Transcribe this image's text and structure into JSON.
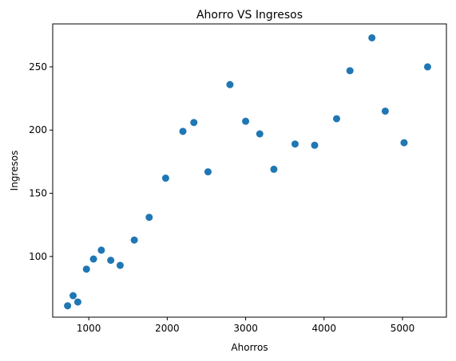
{
  "chart_data": {
    "type": "scatter",
    "title": "Ahorro VS Ingresos",
    "xlabel": "Ahorros",
    "ylabel": "Ingresos",
    "xlim": [
      540,
      5560
    ],
    "ylim": [
      52,
      284
    ],
    "grid": false,
    "legend": "none",
    "marker_color": "#1f77b4",
    "xticks": [
      {
        "value": 1000,
        "label": "1000"
      },
      {
        "value": 2000,
        "label": "2000"
      },
      {
        "value": 3000,
        "label": "3000"
      },
      {
        "value": 4000,
        "label": "4000"
      },
      {
        "value": 5000,
        "label": "5000"
      }
    ],
    "yticks": [
      {
        "value": 100,
        "label": "100"
      },
      {
        "value": 150,
        "label": "150"
      },
      {
        "value": 200,
        "label": "200"
      },
      {
        "value": 250,
        "label": "250"
      }
    ],
    "points": [
      {
        "x": 730,
        "y": 61
      },
      {
        "x": 800,
        "y": 69
      },
      {
        "x": 860,
        "y": 64
      },
      {
        "x": 970,
        "y": 90
      },
      {
        "x": 1060,
        "y": 98
      },
      {
        "x": 1160,
        "y": 105
      },
      {
        "x": 1280,
        "y": 97
      },
      {
        "x": 1400,
        "y": 93
      },
      {
        "x": 1580,
        "y": 113
      },
      {
        "x": 1770,
        "y": 131
      },
      {
        "x": 1980,
        "y": 162
      },
      {
        "x": 2200,
        "y": 199
      },
      {
        "x": 2340,
        "y": 206
      },
      {
        "x": 2520,
        "y": 167
      },
      {
        "x": 2800,
        "y": 236
      },
      {
        "x": 3000,
        "y": 207
      },
      {
        "x": 3180,
        "y": 197
      },
      {
        "x": 3360,
        "y": 169
      },
      {
        "x": 3630,
        "y": 189
      },
      {
        "x": 3880,
        "y": 188
      },
      {
        "x": 4160,
        "y": 209
      },
      {
        "x": 4330,
        "y": 247
      },
      {
        "x": 4610,
        "y": 273
      },
      {
        "x": 4780,
        "y": 215
      },
      {
        "x": 5020,
        "y": 190
      },
      {
        "x": 5320,
        "y": 250
      }
    ]
  }
}
